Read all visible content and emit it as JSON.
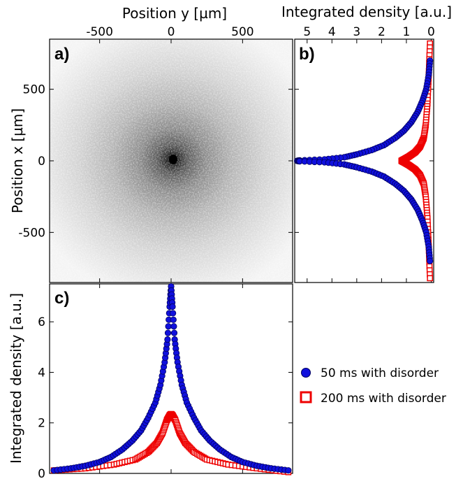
{
  "colors": {
    "series_blue_fill": "#1010dd",
    "series_blue_edge": "#000060",
    "series_red": "#ee0000",
    "frame": "#000000"
  },
  "chart_data": [
    {
      "type": "heatmap",
      "panel_label": "a)",
      "xlabel": "Position y [µm]",
      "ylabel": "Position x [µm]",
      "xlim": [
        -850,
        850
      ],
      "ylim": [
        -850,
        850
      ],
      "xticks": [
        -500,
        0,
        500
      ],
      "yticks": [
        500,
        0,
        -500
      ],
      "colormap": "grayscale, darker = higher density"
    },
    {
      "type": "scatter",
      "panel_label": "b)",
      "xlabel": "Integrated density [a.u.]",
      "xlim": [
        5.5,
        -0.1
      ],
      "ylim": [
        -850,
        850
      ],
      "xticks": [
        5,
        4,
        3,
        2,
        1,
        0
      ],
      "series": [
        {
          "name": "50 ms with disorder",
          "marker": "circle",
          "x": [
            0.05,
            0.1,
            0.2,
            0.35,
            0.55,
            0.8,
            1.1,
            1.45,
            1.9,
            2.4,
            3.0,
            3.5,
            4.3,
            5.3,
            5.4,
            5.3,
            4.3,
            3.5,
            3.0,
            2.4,
            1.9,
            1.45,
            1.1,
            0.8,
            0.55,
            0.35,
            0.2,
            0.1,
            0.05
          ],
          "y": [
            700,
            600,
            500,
            420,
            340,
            270,
            210,
            160,
            110,
            75,
            45,
            25,
            10,
            3,
            0,
            -3,
            -10,
            -25,
            -45,
            -75,
            -110,
            -160,
            -210,
            -270,
            -340,
            -420,
            -500,
            -600,
            -700
          ]
        },
        {
          "name": "200 ms with disorder",
          "marker": "square",
          "x": [
            0.05,
            0.1,
            0.15,
            0.22,
            0.3,
            0.45,
            0.65,
            0.9,
            1.1,
            1.2,
            1.1,
            0.9,
            0.65,
            0.45,
            0.3,
            0.22,
            0.15,
            0.1,
            0.05
          ],
          "y": [
            820,
            600,
            400,
            250,
            160,
            100,
            60,
            30,
            10,
            0,
            -10,
            -30,
            -60,
            -100,
            -160,
            -250,
            -400,
            -600,
            -820
          ]
        }
      ]
    },
    {
      "type": "scatter",
      "panel_label": "c)",
      "ylabel": "Integrated density [a.u.]",
      "xlim": [
        -850,
        850
      ],
      "ylim": [
        0,
        7.5
      ],
      "yticks": [
        0,
        2,
        4,
        6
      ],
      "series": [
        {
          "name": "50 ms with disorder",
          "marker": "circle",
          "x": [
            -820,
            -700,
            -600,
            -500,
            -420,
            -340,
            -270,
            -210,
            -160,
            -110,
            -75,
            -45,
            -25,
            -10,
            0,
            10,
            25,
            45,
            75,
            110,
            160,
            210,
            270,
            340,
            420,
            500,
            600,
            700,
            820
          ],
          "y": [
            0.12,
            0.2,
            0.3,
            0.45,
            0.65,
            0.95,
            1.3,
            1.7,
            2.2,
            2.8,
            3.5,
            4.4,
            5.3,
            6.6,
            7.4,
            6.6,
            5.3,
            4.4,
            3.5,
            2.8,
            2.2,
            1.7,
            1.3,
            0.95,
            0.65,
            0.45,
            0.3,
            0.2,
            0.12
          ]
        },
        {
          "name": "200 ms with disorder",
          "marker": "square",
          "x": [
            -820,
            -600,
            -400,
            -250,
            -160,
            -100,
            -60,
            -30,
            -10,
            0,
            10,
            30,
            60,
            100,
            160,
            250,
            400,
            600,
            820
          ],
          "y": [
            0.12,
            0.2,
            0.35,
            0.55,
            0.85,
            1.2,
            1.6,
            2.1,
            2.3,
            2.35,
            2.3,
            2.1,
            1.6,
            1.2,
            0.85,
            0.55,
            0.35,
            0.2,
            0.05
          ]
        }
      ]
    }
  ],
  "legend": {
    "placement": "lower-right",
    "items": [
      {
        "label": "50 ms with disorder",
        "marker": "circle"
      },
      {
        "label": "200 ms with disorder",
        "marker": "square"
      }
    ]
  }
}
